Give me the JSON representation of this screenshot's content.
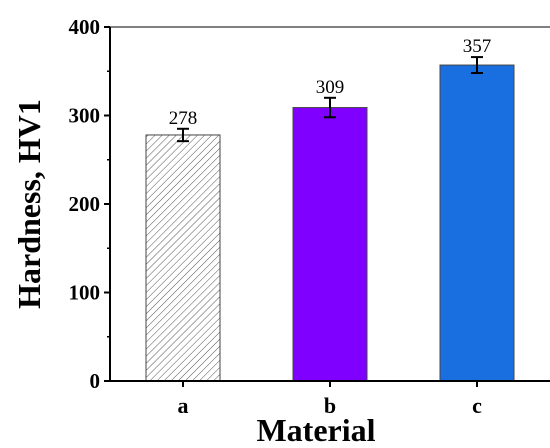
{
  "chart_data": {
    "type": "bar",
    "categories": [
      "a",
      "b",
      "c"
    ],
    "values": [
      278,
      309,
      357
    ],
    "errors": [
      7,
      11,
      9
    ],
    "data_labels": [
      "278",
      "309",
      "357"
    ],
    "bar_colors": [
      "#ffffff",
      "#8000ff",
      "#1a6fe0"
    ],
    "bar_patterns": [
      "diagonal-hatch",
      "solid",
      "solid"
    ],
    "title": "",
    "xlabel": "Material",
    "ylabel": "Hardness, HV1",
    "ylim": [
      0,
      400
    ],
    "yticks": [
      0,
      100,
      200,
      300,
      400
    ],
    "grid": false,
    "legend": "none"
  }
}
